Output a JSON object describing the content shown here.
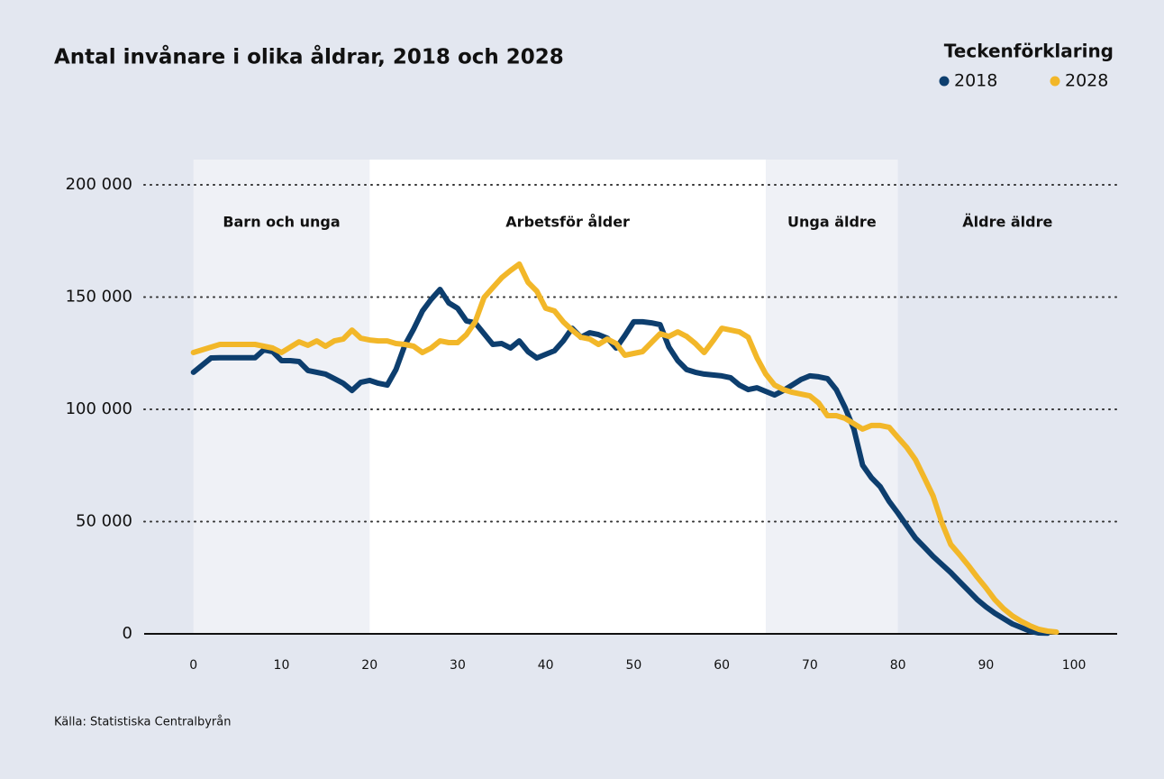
{
  "chart_data": {
    "type": "line",
    "title": "Antal invånare i olika åldrar, 2018 och 2028",
    "legend_title": "Teckenförklaring",
    "legend": "top-right",
    "source": "Källa: Statistiska Centralbyrån",
    "x": [
      0,
      1,
      2,
      3,
      4,
      5,
      6,
      7,
      8,
      9,
      10,
      11,
      12,
      13,
      14,
      15,
      16,
      17,
      18,
      19,
      20,
      21,
      22,
      23,
      24,
      25,
      26,
      27,
      28,
      29,
      30,
      31,
      32,
      33,
      34,
      35,
      36,
      37,
      38,
      39,
      40,
      41,
      42,
      43,
      44,
      45,
      46,
      47,
      48,
      49,
      50,
      51,
      52,
      53,
      54,
      55,
      56,
      57,
      58,
      59,
      60,
      61,
      62,
      63,
      64,
      65,
      66,
      67,
      68,
      69,
      70,
      71,
      72,
      73,
      74,
      75,
      76,
      77,
      78,
      79,
      80,
      81,
      82,
      83,
      84,
      85,
      86,
      87,
      88,
      89,
      90,
      91,
      92,
      93,
      94,
      95,
      96,
      97,
      98
    ],
    "xlim": [
      -5.6,
      104.9
    ],
    "xticks": [
      0,
      10,
      20,
      30,
      40,
      50,
      60,
      70,
      80,
      90,
      100
    ],
    "ylim": [
      0,
      200000
    ],
    "yticks": [
      0,
      {
        "value": 50000,
        "label": "50 000"
      },
      {
        "value": 100000,
        "label": "100 000"
      },
      {
        "value": 150000,
        "label": "150 000"
      },
      {
        "value": 200000,
        "label": "200 000"
      }
    ],
    "grid": true,
    "regions": [
      {
        "label": "Barn och unga",
        "start": 0,
        "end": 20,
        "color": "#eff1f6"
      },
      {
        "label": "Arbetsför ålder",
        "start": 20,
        "end": 65,
        "color": "#ffffff"
      },
      {
        "label": "Unga äldre",
        "start": 65,
        "end": 80,
        "color": "#eff1f6"
      },
      {
        "label": "Äldre äldre",
        "start": 80,
        "end": 104.9,
        "color": "#e3e7f0"
      }
    ],
    "series": [
      {
        "name": "2018",
        "color": "#0d3e6e",
        "values": [
          116500,
          119700,
          122900,
          123000,
          123000,
          123000,
          123000,
          123000,
          126500,
          125700,
          121700,
          121700,
          121300,
          117300,
          116500,
          115700,
          113700,
          111600,
          108400,
          112000,
          112900,
          111600,
          110800,
          117700,
          128500,
          135700,
          143800,
          149000,
          153400,
          147400,
          145000,
          139400,
          138500,
          133700,
          128900,
          129300,
          127300,
          130500,
          125700,
          122900,
          124500,
          126100,
          130500,
          136100,
          132100,
          134100,
          133300,
          131700,
          127300,
          132900,
          139000,
          139000,
          138500,
          137700,
          127700,
          121700,
          117700,
          116500,
          115700,
          115300,
          114900,
          114100,
          110800,
          108800,
          109600,
          108000,
          106400,
          108400,
          110800,
          113300,
          114900,
          114500,
          113700,
          108800,
          100800,
          91200,
          75100,
          69500,
          65500,
          59000,
          53800,
          48200,
          42600,
          38600,
          34500,
          30900,
          27300,
          23300,
          19300,
          15300,
          12000,
          9200,
          6800,
          4400,
          2800,
          1200,
          400,
          300,
          null
        ]
      },
      {
        "name": "2028",
        "color": "#f2b729",
        "values": [
          125300,
          126500,
          127700,
          128900,
          128900,
          128900,
          128900,
          128900,
          128100,
          127300,
          125300,
          127700,
          130100,
          128500,
          130500,
          128100,
          130500,
          131300,
          135300,
          131700,
          130900,
          130500,
          130500,
          129300,
          128900,
          128100,
          125300,
          127300,
          130500,
          129700,
          129700,
          133300,
          139000,
          149800,
          154200,
          158600,
          161800,
          164700,
          156600,
          152600,
          145000,
          143800,
          139000,
          135300,
          132100,
          131300,
          128900,
          131300,
          129300,
          124100,
          124900,
          125700,
          129700,
          133700,
          132500,
          134500,
          132500,
          129300,
          125300,
          130500,
          136100,
          135300,
          134500,
          132100,
          122900,
          115700,
          110800,
          108800,
          107600,
          106800,
          106000,
          102800,
          97200,
          97200,
          96000,
          93600,
          91200,
          92800,
          92800,
          92000,
          87500,
          83100,
          77500,
          69500,
          61400,
          49400,
          39800,
          35300,
          30500,
          25300,
          20500,
          15300,
          11200,
          8000,
          5600,
          3600,
          2000,
          1200,
          800
        ]
      }
    ]
  }
}
